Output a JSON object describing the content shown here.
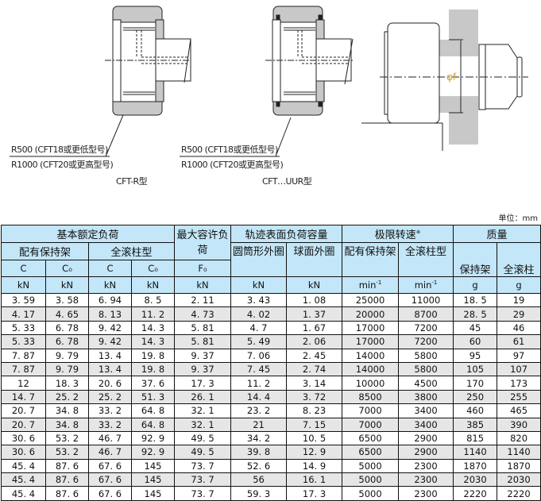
{
  "drawings": {
    "left_callout": [
      "R500 (CFT18或更低型号)",
      "R1000 (CFT20或更高型号)"
    ],
    "left_caption": "CFT-R型",
    "middle_callout": [
      "R500 (CFT18或更低型号)",
      "R1000 (CFT20或更高型号)"
    ],
    "middle_caption": "CFT…UUR型",
    "right_dimension": "φf"
  },
  "unit": "单位：mm",
  "table": {
    "header": {
      "basic_load": "基本额定负荷",
      "with_cage": "配有保持架",
      "full_roller": "全滚柱型",
      "max_load": "最大容许负荷",
      "track_capacity": "轨迹表面负荷容量",
      "cylindrical": "圆筒形外圈",
      "spherical": "球面外圈",
      "limit_speed": "极限转速",
      "limit_speed_note": "※",
      "speed_with_cage": "配有保持架",
      "speed_full_roller": "全滚柱型",
      "mass": "质量",
      "mass_cage": "保持架",
      "mass_full": "全滚柱",
      "c": "C",
      "c0": "C₀",
      "f0": "F₀",
      "kn": "kN",
      "min": "min",
      "min_exp": "-1",
      "g": "g"
    },
    "rows": [
      [
        "3. 59",
        "3. 58",
        "6. 94",
        "8. 5",
        "2. 11",
        "3. 43",
        "1. 08",
        "25000",
        "11000",
        "18. 5",
        "19"
      ],
      [
        "4. 17",
        "4. 65",
        "8. 13",
        "11. 2",
        "4. 73",
        "4. 02",
        "1. 37",
        "20000",
        "8700",
        "28. 5",
        "29"
      ],
      [
        "5. 33",
        "6. 78",
        "9. 42",
        "14. 3",
        "5. 81",
        "4. 7",
        "1. 67",
        "17000",
        "7200",
        "45",
        "46"
      ],
      [
        "5. 33",
        "6. 78",
        "9. 42",
        "14. 3",
        "5. 81",
        "5. 49",
        "2. 06",
        "17000",
        "7200",
        "60",
        "61"
      ],
      [
        "7. 87",
        "9. 79",
        "13. 4",
        "19. 8",
        "9. 37",
        "7. 06",
        "2. 45",
        "14000",
        "5800",
        "95",
        "97"
      ],
      [
        "7. 87",
        "9. 79",
        "13. 4",
        "19. 8",
        "9. 37",
        "7. 45",
        "2. 74",
        "14000",
        "5800",
        "105",
        "107"
      ],
      [
        "12",
        "18. 3",
        "20. 6",
        "37. 6",
        "17. 3",
        "11. 2",
        "3. 14",
        "10000",
        "4500",
        "170",
        "173"
      ],
      [
        "14. 7",
        "25. 2",
        "25. 2",
        "51. 3",
        "26. 1",
        "14. 4",
        "3. 72",
        "8500",
        "3800",
        "250",
        "255"
      ],
      [
        "20. 7",
        "34. 8",
        "33. 2",
        "64. 8",
        "32. 1",
        "23. 2",
        "8. 23",
        "7000",
        "3400",
        "460",
        "465"
      ],
      [
        "20. 7",
        "34. 8",
        "33. 2",
        "64. 8",
        "32. 1",
        "21",
        "7. 15",
        "7000",
        "3400",
        "385",
        "390"
      ],
      [
        "30. 6",
        "53. 2",
        "46. 7",
        "92. 9",
        "49. 5",
        "34. 2",
        "10. 5",
        "6500",
        "2900",
        "815",
        "820"
      ],
      [
        "30. 6",
        "53. 2",
        "46. 7",
        "92. 9",
        "49. 5",
        "39. 8",
        "12. 9",
        "6500",
        "2900",
        "1140",
        "1140"
      ],
      [
        "45. 4",
        "87. 6",
        "67. 6",
        "145",
        "73. 7",
        "52. 6",
        "14. 9",
        "5000",
        "2300",
        "1870",
        "1870"
      ],
      [
        "45. 4",
        "87. 6",
        "67. 6",
        "145",
        "73. 7",
        "56",
        "16. 1",
        "5000",
        "2300",
        "2030",
        "2030"
      ],
      [
        "45. 4",
        "87. 6",
        "67. 6",
        "145",
        "73. 7",
        "59. 3",
        "17. 3",
        "5000",
        "2300",
        "2220",
        "2220"
      ]
    ]
  },
  "colors": {
    "header_bg": "#c3e6f8",
    "row_alt": "#e6e6e6",
    "roller_gray": "#c8c8c8",
    "dimension_label": "#e0a020"
  }
}
